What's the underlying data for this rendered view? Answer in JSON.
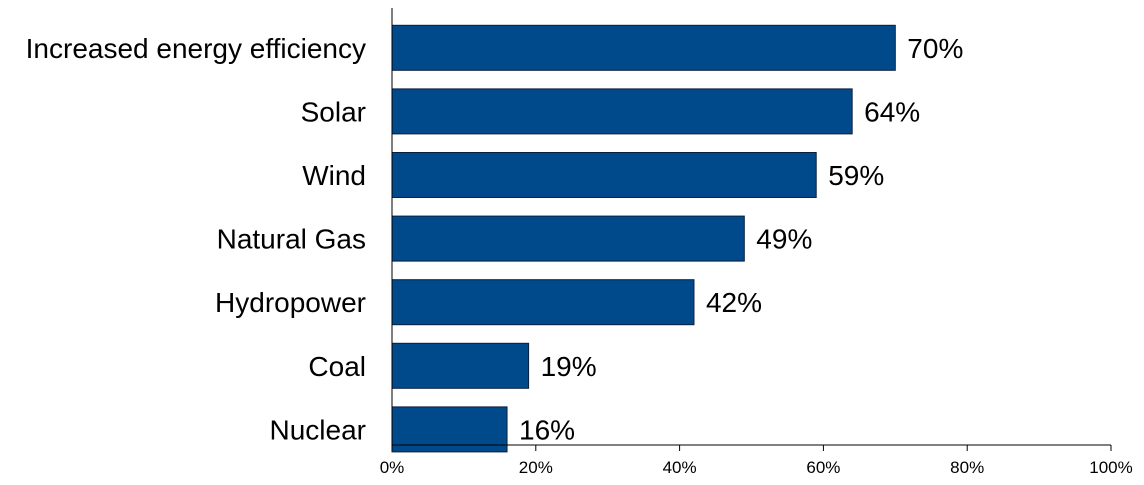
{
  "chart_data": {
    "type": "bar",
    "orientation": "horizontal",
    "categories": [
      "Increased energy efficiency",
      "Solar",
      "Wind",
      "Natural Gas",
      "Hydropower",
      "Coal",
      "Nuclear"
    ],
    "values": [
      70,
      64,
      59,
      49,
      42,
      19,
      16
    ],
    "value_labels": [
      "70%",
      "64%",
      "59%",
      "49%",
      "42%",
      "19%",
      "16%"
    ],
    "xlim": [
      0,
      100
    ],
    "xticks": [
      0,
      20,
      40,
      60,
      80,
      100
    ],
    "xtick_labels": [
      "0%",
      "20%",
      "40%",
      "60%",
      "80%",
      "100%"
    ],
    "title": "",
    "xlabel": "",
    "ylabel": "",
    "grid": false,
    "bar_color": "#004a8c"
  }
}
